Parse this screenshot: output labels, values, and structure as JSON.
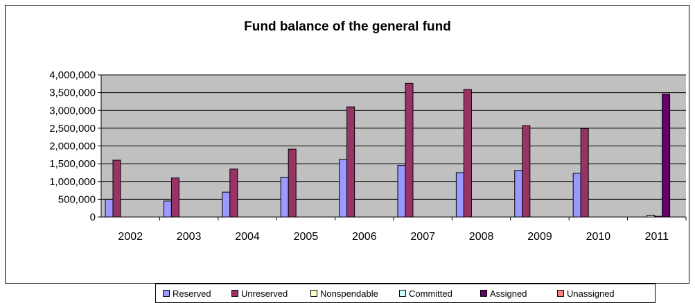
{
  "chart_data": {
    "type": "bar",
    "title": "Fund balance of the general fund",
    "categories": [
      "2002",
      "2003",
      "2004",
      "2005",
      "2006",
      "2007",
      "2008",
      "2009",
      "2010",
      "2011"
    ],
    "ylim": [
      0,
      4000000
    ],
    "yticks": [
      "0",
      "500,000",
      "1,000,000",
      "1,500,000",
      "2,000,000",
      "2,500,000",
      "3,000,000",
      "3,500,000",
      "4,000,000"
    ],
    "grid": true,
    "legend_position": "bottom",
    "series": [
      {
        "name": "Reserved",
        "color": "#9999ff",
        "values": [
          500000,
          450000,
          700000,
          1120000,
          1620000,
          1450000,
          1250000,
          1310000,
          1230000,
          0
        ]
      },
      {
        "name": "Unreserved",
        "color": "#993366",
        "values": [
          1600000,
          1100000,
          1350000,
          1910000,
          3100000,
          3760000,
          3590000,
          2570000,
          2490000,
          0
        ]
      },
      {
        "name": "Nonspendable",
        "color": "#ffffcc",
        "values": [
          0,
          0,
          0,
          0,
          0,
          0,
          0,
          0,
          0,
          50000
        ]
      },
      {
        "name": "Committed",
        "color": "#ccffff",
        "values": [
          0,
          0,
          0,
          0,
          0,
          0,
          0,
          0,
          0,
          20000
        ]
      },
      {
        "name": "Assigned",
        "color": "#660066",
        "values": [
          0,
          0,
          0,
          0,
          0,
          0,
          0,
          0,
          0,
          3460000
        ]
      },
      {
        "name": "Unassigned",
        "color": "#ff8080",
        "values": [
          0,
          0,
          0,
          0,
          0,
          0,
          0,
          0,
          0,
          0
        ]
      }
    ]
  }
}
